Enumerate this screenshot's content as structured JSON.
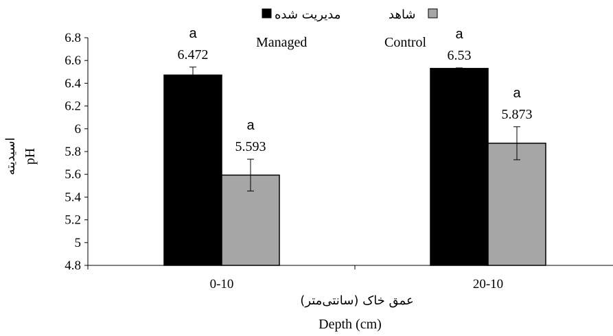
{
  "chart_data": {
    "type": "bar",
    "categories": [
      "0-10",
      "20-10"
    ],
    "series": [
      {
        "name_fa": "مدیریت شده",
        "name": "Managed",
        "color": "#000000",
        "values": [
          6.472,
          6.53
        ],
        "error": [
          0.07,
          0.005
        ],
        "value_labels": [
          "6.472",
          "6.53"
        ],
        "significance": [
          "a",
          "a"
        ]
      },
      {
        "name_fa": "شاهد",
        "name": "Control",
        "color": "#a6a6a6",
        "values": [
          5.593,
          5.873
        ],
        "error": [
          0.14,
          0.145
        ],
        "value_labels": [
          "5.593",
          "5.873"
        ],
        "significance": [
          "a",
          "a"
        ]
      }
    ],
    "xlabel_fa": "عمق خاک (سانتی‌متر)",
    "xlabel": "Depth (cm)",
    "ylabel_fa": "اسیدیته",
    "ylabel": "pH",
    "ylim": [
      4.8,
      6.8
    ],
    "yticks": [
      4.8,
      5,
      5.2,
      5.4,
      5.6,
      5.8,
      6,
      6.2,
      6.4,
      6.6,
      6.8
    ],
    "ytick_labels": [
      "4.8",
      "5",
      "5.2",
      "5.4",
      "5.6",
      "5.8",
      "6",
      "6.2",
      "6.4",
      "6.6",
      "6.8"
    ],
    "legend_position": "top-center",
    "grid": false
  }
}
